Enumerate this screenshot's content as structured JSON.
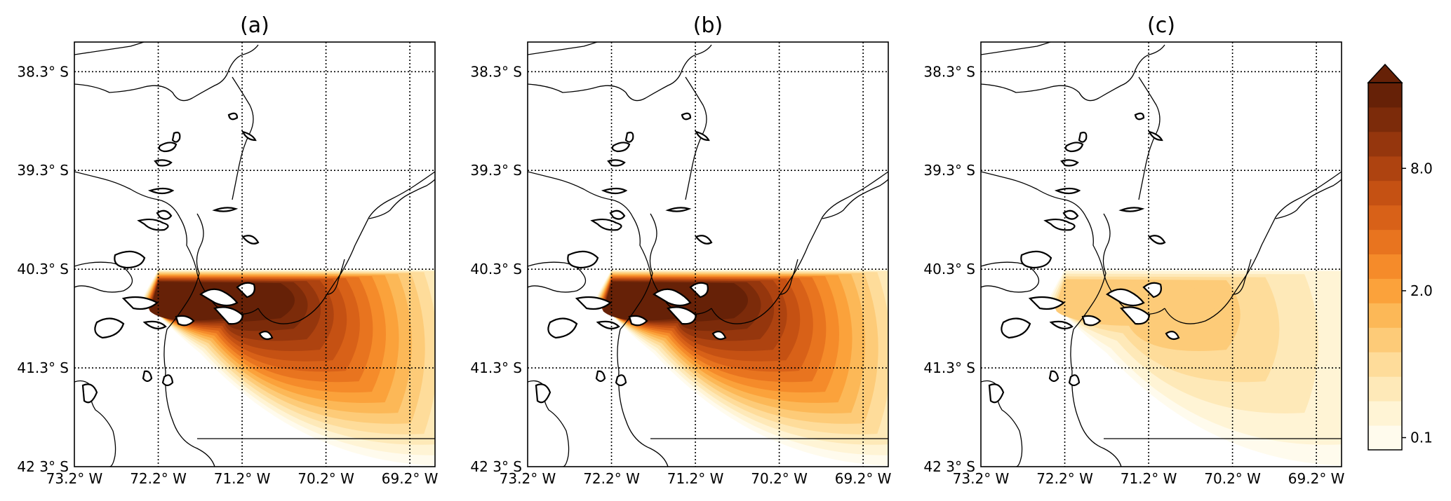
{
  "figure": {
    "panels": [
      {
        "id": "a",
        "title": "(a)",
        "intensity": 1.0
      },
      {
        "id": "b",
        "title": "(b)",
        "intensity": 1.0
      },
      {
        "id": "c",
        "title": "(c)",
        "intensity": 0.32
      }
    ],
    "lat_ticks": [
      "38.3° S",
      "39.3° S",
      "40.3° S",
      "41.3° S",
      "42 3° S"
    ],
    "lon_ticks": [
      "73.2° W",
      "72.2° W",
      "71.2° W",
      "70.2° W",
      "69.2° W"
    ],
    "lat_values": [
      -38.3,
      -39.3,
      -40.3,
      -41.3,
      -42.3
    ],
    "lon_values": [
      -73.2,
      -72.2,
      -71.2,
      -70.2,
      -69.2
    ],
    "extent": {
      "lon_min": -73.2,
      "lon_max": -68.9,
      "lat_min": -42.3,
      "lat_max": -38.0
    },
    "plume_source": {
      "lon": -72.2,
      "lat": -40.3
    },
    "colorbar": {
      "tick_labels": [
        "0.1",
        "2.0",
        "8.0"
      ],
      "colors": [
        "#fffbed",
        "#fff4d5",
        "#fee9b8",
        "#fedc9a",
        "#fdcb78",
        "#fcb857",
        "#fba23b",
        "#f58b2a",
        "#e8741f",
        "#d86118",
        "#c55113",
        "#ae4310",
        "#95360d",
        "#7c2b0a",
        "#662107"
      ],
      "extend": "max"
    }
  }
}
